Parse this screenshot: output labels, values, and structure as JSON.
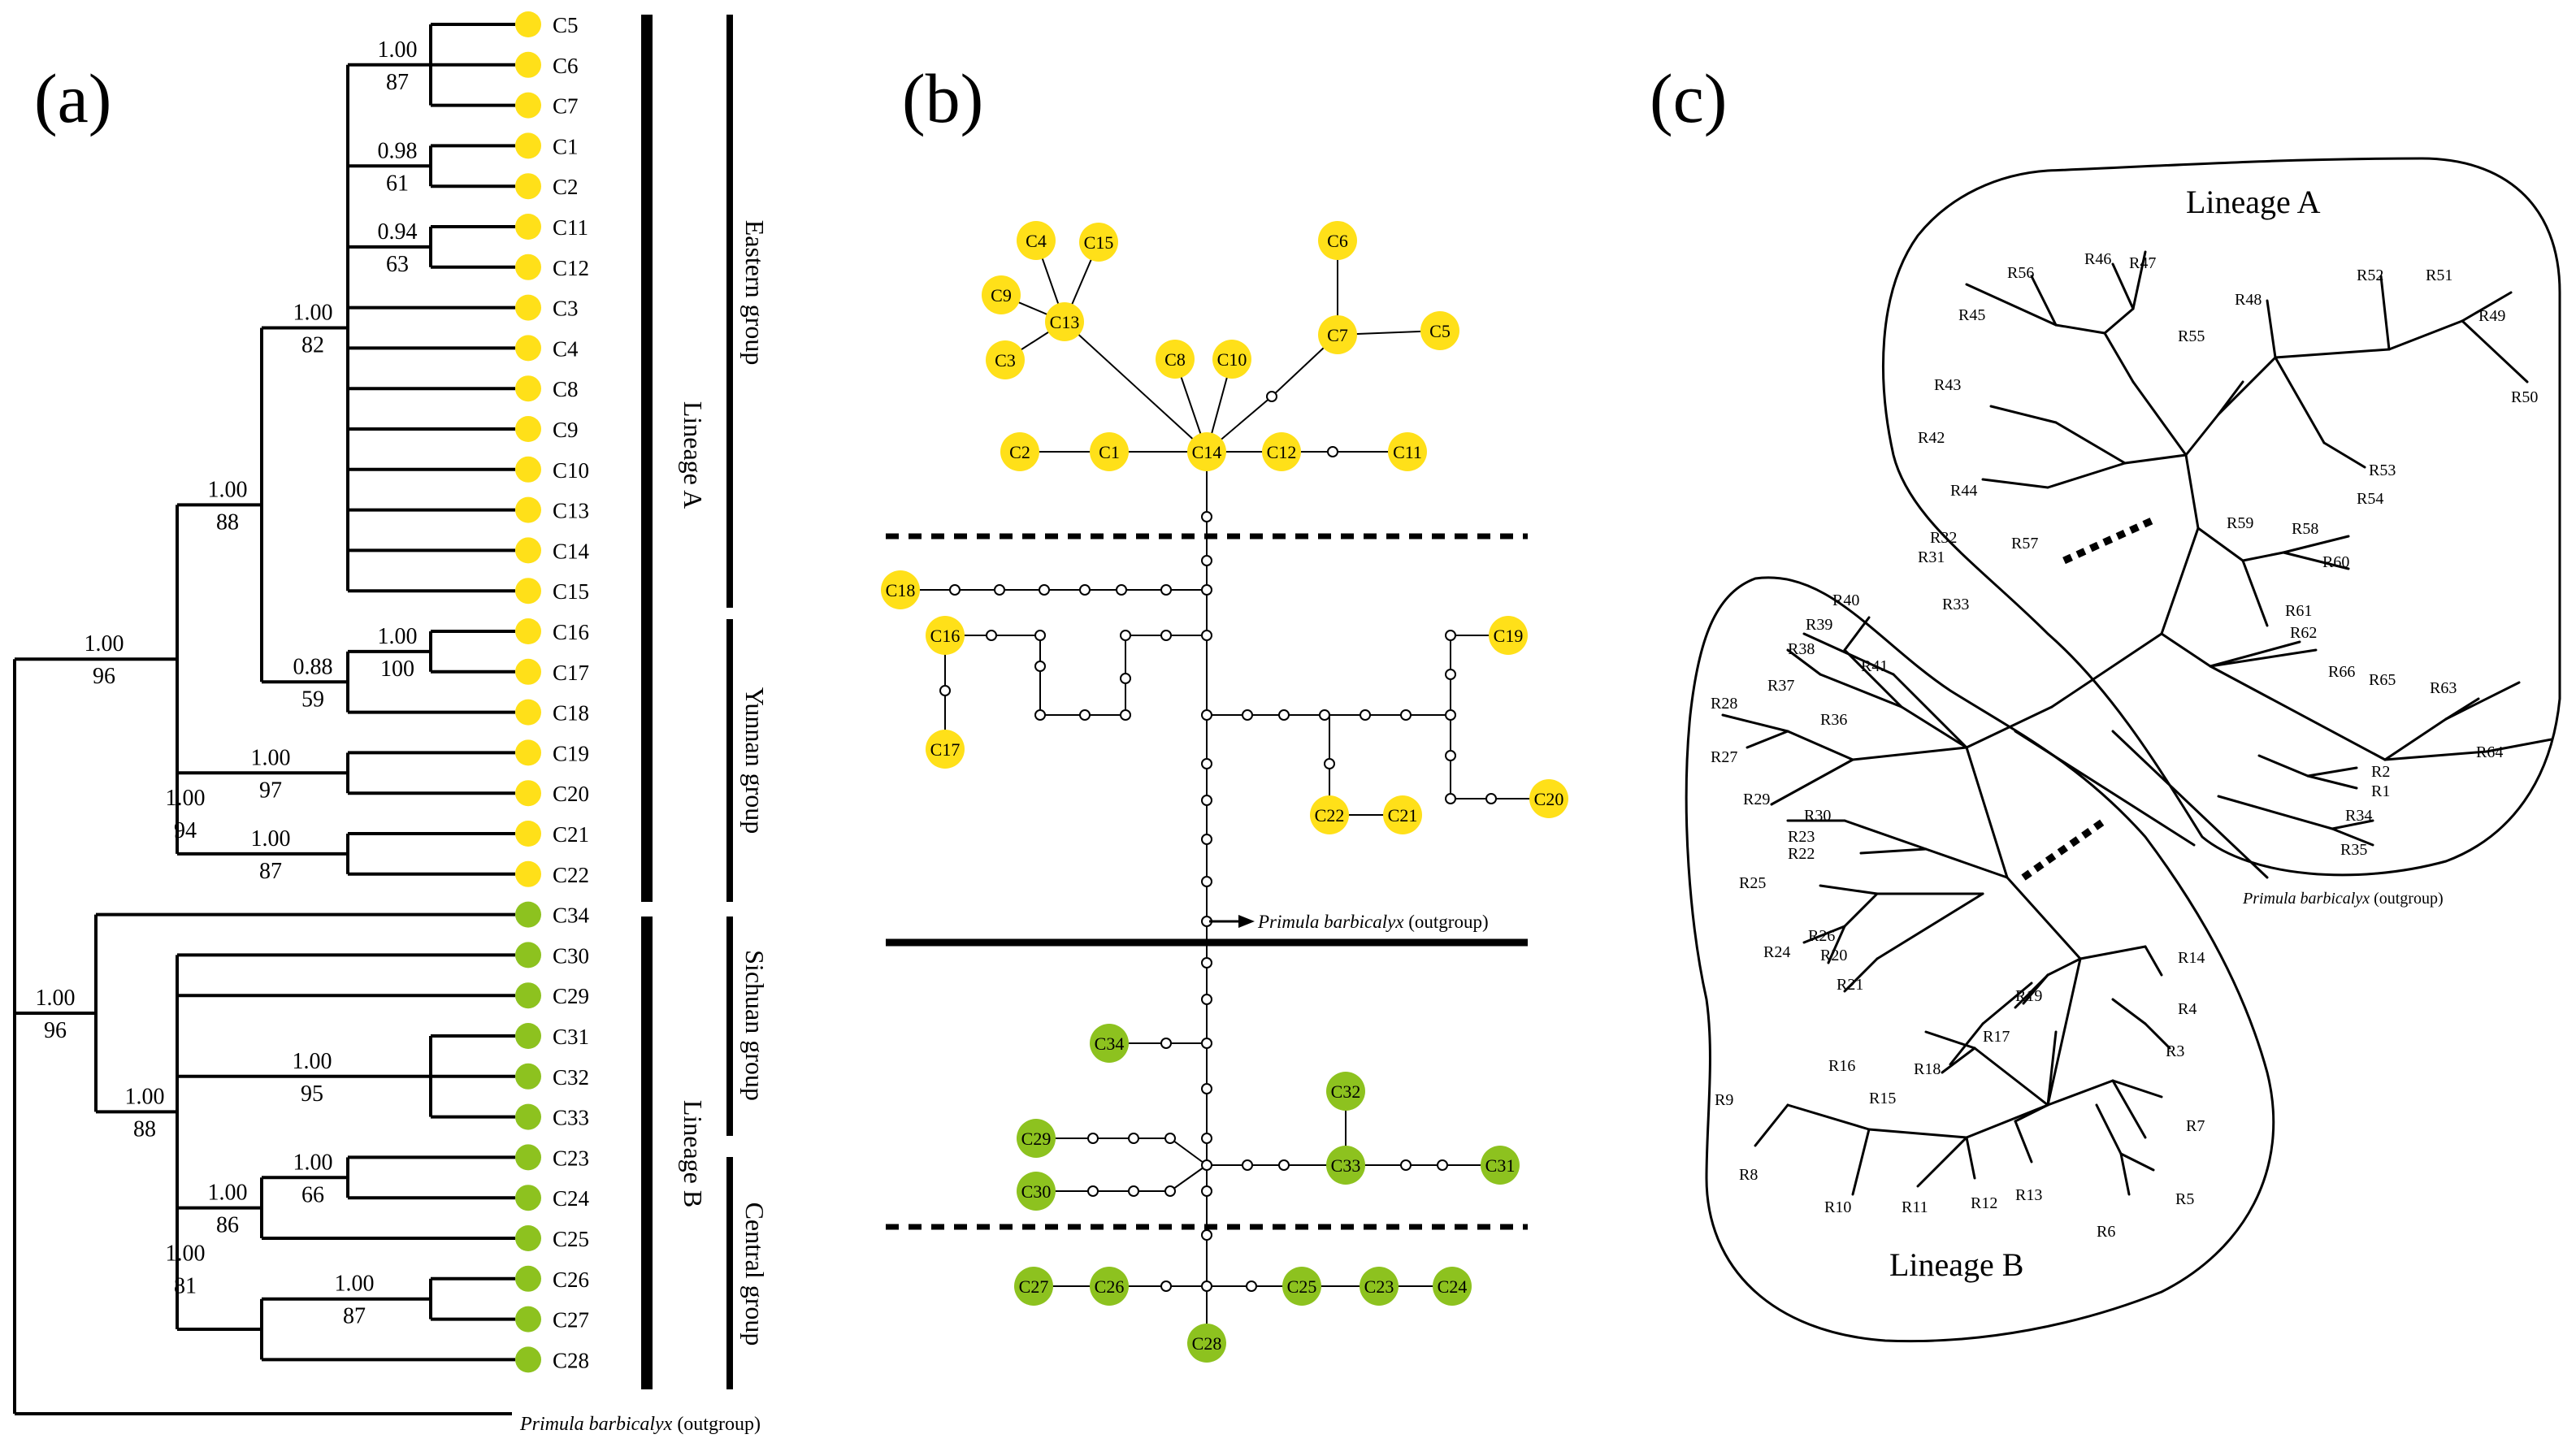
{
  "colors": {
    "yellow": "#FFE019",
    "green": "#8DC21F",
    "line": "#000000"
  },
  "panel_a": {
    "label": "(a)",
    "outgroup_species": "Primula barbicalyx",
    "outgroup_note": "(outgroup)",
    "tips": [
      {
        "id": "C5",
        "color": "yellow"
      },
      {
        "id": "C6",
        "color": "yellow"
      },
      {
        "id": "C7",
        "color": "yellow"
      },
      {
        "id": "C1",
        "color": "yellow"
      },
      {
        "id": "C2",
        "color": "yellow"
      },
      {
        "id": "C11",
        "color": "yellow"
      },
      {
        "id": "C12",
        "color": "yellow"
      },
      {
        "id": "C3",
        "color": "yellow"
      },
      {
        "id": "C4",
        "color": "yellow"
      },
      {
        "id": "C8",
        "color": "yellow"
      },
      {
        "id": "C9",
        "color": "yellow"
      },
      {
        "id": "C10",
        "color": "yellow"
      },
      {
        "id": "C13",
        "color": "yellow"
      },
      {
        "id": "C14",
        "color": "yellow"
      },
      {
        "id": "C15",
        "color": "yellow"
      },
      {
        "id": "C16",
        "color": "yellow"
      },
      {
        "id": "C17",
        "color": "yellow"
      },
      {
        "id": "C18",
        "color": "yellow"
      },
      {
        "id": "C19",
        "color": "yellow"
      },
      {
        "id": "C20",
        "color": "yellow"
      },
      {
        "id": "C21",
        "color": "yellow"
      },
      {
        "id": "C22",
        "color": "yellow"
      },
      {
        "id": "C34",
        "color": "green"
      },
      {
        "id": "C30",
        "color": "green"
      },
      {
        "id": "C29",
        "color": "green"
      },
      {
        "id": "C31",
        "color": "green"
      },
      {
        "id": "C32",
        "color": "green"
      },
      {
        "id": "C33",
        "color": "green"
      },
      {
        "id": "C23",
        "color": "green"
      },
      {
        "id": "C24",
        "color": "green"
      },
      {
        "id": "C25",
        "color": "green"
      },
      {
        "id": "C26",
        "color": "green"
      },
      {
        "id": "C27",
        "color": "green"
      },
      {
        "id": "C28",
        "color": "green"
      }
    ],
    "supports": [
      {
        "pp": "1.00",
        "bs": "87"
      },
      {
        "pp": "0.98",
        "bs": "61"
      },
      {
        "pp": "0.94",
        "bs": "63"
      },
      {
        "pp": "1.00",
        "bs": "82"
      },
      {
        "pp": "1.00",
        "bs": "88"
      },
      {
        "pp": "1.00",
        "bs": "100"
      },
      {
        "pp": "0.88",
        "bs": "59"
      },
      {
        "pp": "1.00",
        "bs": "97"
      },
      {
        "pp": "1.00",
        "bs": "87"
      },
      {
        "pp": "1.00",
        "bs": "94"
      },
      {
        "pp": "1.00",
        "bs": "96"
      },
      {
        "pp": "1.00",
        "bs": "95"
      },
      {
        "pp": "1.00",
        "bs": "88"
      },
      {
        "pp": "1.00",
        "bs": "66"
      },
      {
        "pp": "1.00",
        "bs": "86"
      },
      {
        "pp": "1.00",
        "bs": "87"
      },
      {
        "pp": "1.00",
        "bs": "81"
      },
      {
        "pp": "1.00",
        "bs": "96"
      }
    ],
    "lineages": [
      "Lineage A",
      "Lineage B"
    ],
    "groups": [
      "Eastern group",
      "Yunnan group",
      "Sichuan group",
      "Central group"
    ]
  },
  "panel_b": {
    "label": "(b)",
    "outgroup_species": "Primula barbicalyx",
    "outgroup_note": "(outgroup)",
    "haplotypes": [
      {
        "id": "C4",
        "color": "yellow"
      },
      {
        "id": "C15",
        "color": "yellow"
      },
      {
        "id": "C9",
        "color": "yellow"
      },
      {
        "id": "C13",
        "color": "yellow"
      },
      {
        "id": "C3",
        "color": "yellow"
      },
      {
        "id": "C8",
        "color": "yellow"
      },
      {
        "id": "C10",
        "color": "yellow"
      },
      {
        "id": "C6",
        "color": "yellow"
      },
      {
        "id": "C7",
        "color": "yellow"
      },
      {
        "id": "C5",
        "color": "yellow"
      },
      {
        "id": "C2",
        "color": "yellow"
      },
      {
        "id": "C1",
        "color": "yellow"
      },
      {
        "id": "C14",
        "color": "yellow"
      },
      {
        "id": "C12",
        "color": "yellow"
      },
      {
        "id": "C11",
        "color": "yellow"
      },
      {
        "id": "C18",
        "color": "yellow"
      },
      {
        "id": "C16",
        "color": "yellow"
      },
      {
        "id": "C17",
        "color": "yellow"
      },
      {
        "id": "C19",
        "color": "yellow"
      },
      {
        "id": "C22",
        "color": "yellow"
      },
      {
        "id": "C21",
        "color": "yellow"
      },
      {
        "id": "C20",
        "color": "yellow"
      },
      {
        "id": "C34",
        "color": "green"
      },
      {
        "id": "C32",
        "color": "green"
      },
      {
        "id": "C29",
        "color": "green"
      },
      {
        "id": "C30",
        "color": "green"
      },
      {
        "id": "C33",
        "color": "green"
      },
      {
        "id": "C31",
        "color": "green"
      },
      {
        "id": "C27",
        "color": "green"
      },
      {
        "id": "C26",
        "color": "green"
      },
      {
        "id": "C25",
        "color": "green"
      },
      {
        "id": "C23",
        "color": "green"
      },
      {
        "id": "C24",
        "color": "green"
      },
      {
        "id": "C28",
        "color": "green"
      }
    ]
  },
  "panel_c": {
    "label": "(c)",
    "lineage_a": "Lineage A",
    "lineage_b": "Lineage B",
    "outgroup_species": "Primula barbicalyx",
    "outgroup_note": "(outgroup)",
    "ribotypes": [
      "R1",
      "R2",
      "R3",
      "R4",
      "R5",
      "R6",
      "R7",
      "R8",
      "R9",
      "R10",
      "R11",
      "R12",
      "R13",
      "R14",
      "R15",
      "R16",
      "R17",
      "R18",
      "R19",
      "R20",
      "R21",
      "R22",
      "R23",
      "R24",
      "R25",
      "R26",
      "R27",
      "R28",
      "R29",
      "R30",
      "R31",
      "R32",
      "R33",
      "R34",
      "R35",
      "R36",
      "R37",
      "R38",
      "R39",
      "R40",
      "R41",
      "R42",
      "R43",
      "R44",
      "R45",
      "R46",
      "R47",
      "R48",
      "R49",
      "R50",
      "R51",
      "R52",
      "R53",
      "R54",
      "R55",
      "R56",
      "R57",
      "R58",
      "R59",
      "R60",
      "R61",
      "R62",
      "R63",
      "R64",
      "R65",
      "R66"
    ]
  }
}
